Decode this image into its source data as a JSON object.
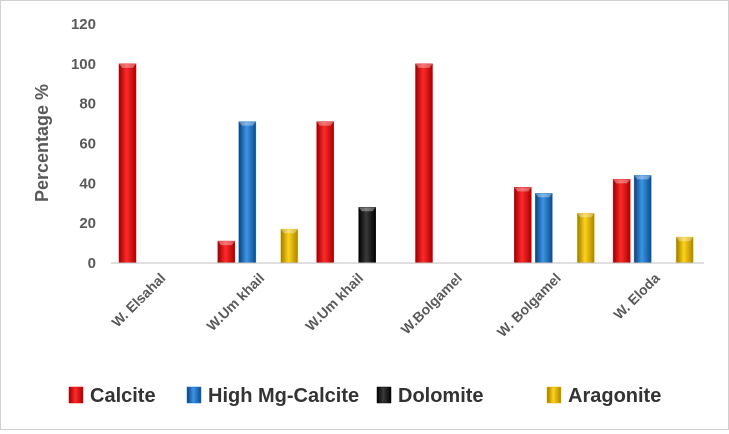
{
  "chart_data": {
    "type": "bar",
    "title": "",
    "xlabel": "",
    "ylabel": "Percentage %",
    "ylim": [
      0,
      120
    ],
    "yticks": [
      0,
      20,
      40,
      60,
      80,
      100,
      120
    ],
    "grid": false,
    "legend_position": "bottom",
    "categories": [
      "W. Elsahal",
      "W.Um khail",
      "W.Um khail",
      "W.Bolgamel",
      "W. Bolgamel",
      "W. Eloda"
    ],
    "series": [
      {
        "name": "Calcite",
        "color": "#e8000b",
        "values": [
          100,
          11,
          71,
          100,
          38,
          42
        ]
      },
      {
        "name": "High Mg-Calcite",
        "color": "#1874cd",
        "values": [
          0,
          71,
          0,
          0,
          35,
          44
        ]
      },
      {
        "name": "Dolomite",
        "color": "#111111",
        "values": [
          0,
          0,
          28,
          0,
          0,
          0
        ]
      },
      {
        "name": "Aragonite",
        "color": "#e6b800",
        "values": [
          0,
          17,
          0,
          0,
          25,
          13
        ]
      }
    ]
  }
}
